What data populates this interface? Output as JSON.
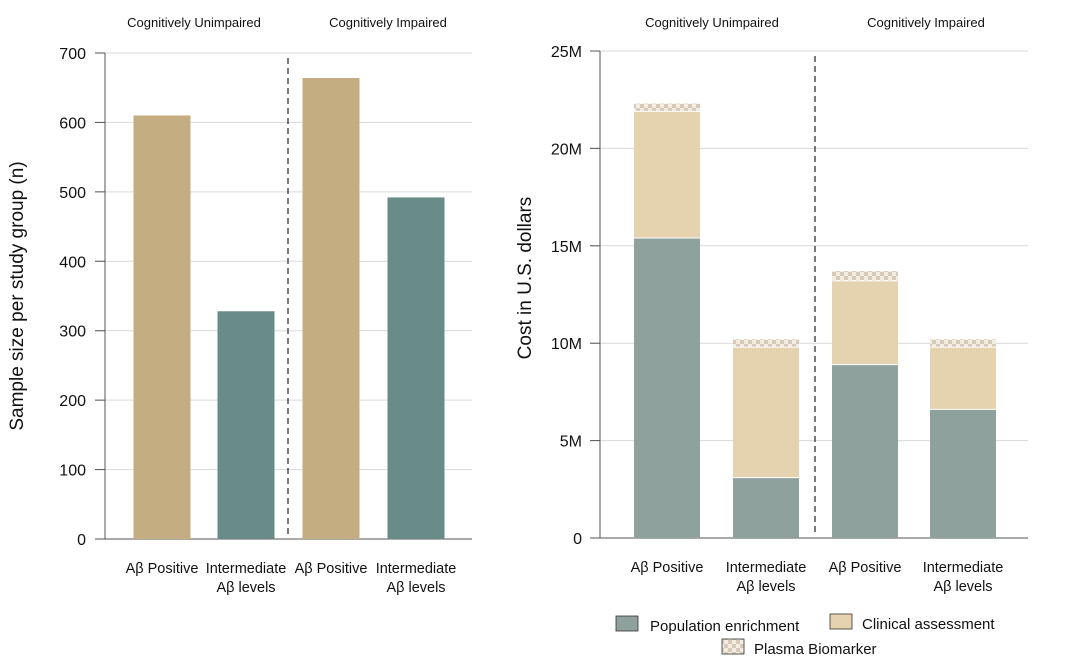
{
  "colors": {
    "positive": "#c4ad80",
    "intermediate": "#6a8c89",
    "population": "#8fa19d",
    "clinical": "#e5d2ae",
    "plasma_a": "#d8cab8",
    "plasma_b": "#f2ece2"
  },
  "chart_data": [
    {
      "type": "bar",
      "title": "",
      "group_labels": [
        "Cognitively Unimpaired",
        "Cognitively Impaired"
      ],
      "categories": [
        "Aβ Positive",
        "Intermediate|Aβ levels",
        "Aβ Positive",
        "Intermediate|Aβ levels"
      ],
      "values": [
        610,
        328,
        664,
        492
      ],
      "bar_color_keys": [
        "positive",
        "intermediate",
        "positive",
        "intermediate"
      ],
      "ylabel": "Sample size per study group (n)",
      "xlabel": "",
      "ylim": [
        0,
        700
      ],
      "yticks": [
        0,
        100,
        200,
        300,
        400,
        500,
        600,
        700
      ],
      "ytick_labels": [
        "0",
        "100",
        "200",
        "300",
        "400",
        "500",
        "600",
        "700"
      ],
      "grid": true
    },
    {
      "type": "bar",
      "stacked": true,
      "title": "",
      "group_labels": [
        "Cognitively Unimpaired",
        "Cognitively Impaired"
      ],
      "categories": [
        "Aβ Positive",
        "Intermediate|Aβ levels",
        "Aβ Positive",
        "Intermediate|Aβ levels"
      ],
      "series": [
        {
          "name": "Population enrichment",
          "color_key": "population",
          "values": [
            15.4,
            3.1,
            8.9,
            6.6
          ]
        },
        {
          "name": "Clinical assessment",
          "color_key": "clinical",
          "values": [
            6.5,
            6.7,
            4.3,
            3.2
          ]
        },
        {
          "name": "Plasma Biomarker",
          "color_key": "plasma",
          "values": [
            0.4,
            0.4,
            0.5,
            0.4
          ]
        }
      ],
      "ylabel": "Cost in U.S. dollars",
      "xlabel": "",
      "ylim": [
        0,
        25
      ],
      "yticks": [
        0,
        5,
        10,
        15,
        20,
        25
      ],
      "ytick_labels": [
        "0",
        "5M",
        "10M",
        "15M",
        "20M",
        "25M"
      ],
      "grid": true,
      "legend": "bottom"
    }
  ]
}
